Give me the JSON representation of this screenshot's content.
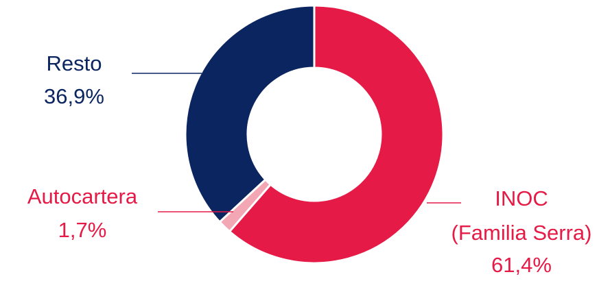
{
  "chart_data": {
    "type": "pie",
    "donut": true,
    "legend": "none",
    "slices": [
      {
        "label_lines": [
          "INOC",
          "(Familia Serra)"
        ],
        "value_label": "61,4%",
        "value": 61.4,
        "color": "#E51A46"
      },
      {
        "label_lines": [
          "Autocartera"
        ],
        "value_label": "1,7%",
        "value": 1.7,
        "color": "#F3A6B4"
      },
      {
        "label_lines": [
          "Resto"
        ],
        "value_label": "36,9%",
        "value": 36.9,
        "color": "#0B2560"
      }
    ],
    "label_colors": {
      "INOC": "#E51A46",
      "Autocartera": "#E51A46",
      "Resto": "#0B2560"
    }
  }
}
